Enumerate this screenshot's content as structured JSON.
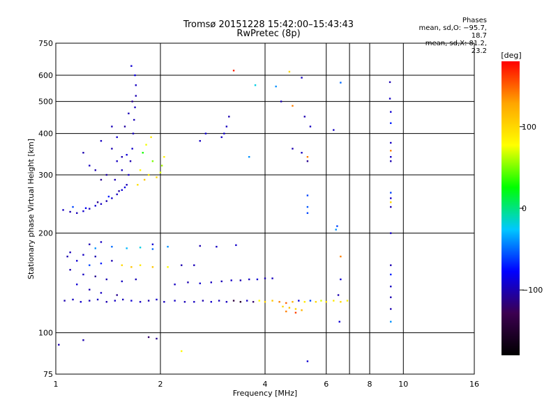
{
  "header": {
    "title_line1": "Tromsø 20151228 15:42:00–15:43:43",
    "title_line2": "RwPretec (8p)"
  },
  "stats": {
    "heading": "Phases",
    "line_o": "mean, sd,O: −95.7, 18.7",
    "line_x": "mean, sd,X:  81.2, 23.2"
  },
  "colorbar": {
    "label": "[deg]",
    "ticks": [
      "100",
      "0",
      "−100"
    ],
    "tick_values": [
      100,
      0,
      -100
    ],
    "range": [
      -180,
      180
    ],
    "colors": [
      "#000000",
      "#3c0050",
      "#0000ff",
      "#00c8ff",
      "#00ff00",
      "#ffff00",
      "#ffa500",
      "#ff0000"
    ]
  },
  "chart_data": {
    "type": "scatter",
    "title": "Tromsø 20151228 15:42:00–15:43:43",
    "subtitle": "RwPretec (8p)",
    "xlabel": "Frequency [MHz]",
    "ylabel": "Stationary phase Virtual Height [km]",
    "xscale": "log",
    "yscale": "log",
    "xlim": [
      1,
      16
    ],
    "ylim": [
      75,
      750
    ],
    "xticks": [
      1,
      2,
      4,
      6,
      8,
      10,
      16
    ],
    "xtick_labels": [
      "1",
      "2",
      "4",
      "6",
      "8",
      "10",
      "16"
    ],
    "yticks": [
      75,
      100,
      200,
      300,
      400,
      500,
      600,
      750
    ],
    "ytick_labels": [
      "75",
      "100",
      "200",
      "300",
      "400",
      "500",
      "600",
      "750"
    ],
    "grid": true,
    "x_gridlines": [
      2,
      4,
      6,
      7,
      8,
      10
    ],
    "y_gridlines": [
      100,
      200,
      300,
      400,
      500,
      600
    ],
    "color_by": "phase [deg]",
    "series": [
      {
        "points": [
          [
            1.05,
            235,
            -95
          ],
          [
            1.1,
            232,
            -100
          ],
          [
            1.15,
            230,
            -98
          ],
          [
            1.2,
            233,
            -92
          ],
          [
            1.25,
            237,
            -97
          ],
          [
            1.3,
            242,
            -90
          ],
          [
            1.35,
            245,
            -95
          ],
          [
            1.4,
            250,
            -100
          ],
          [
            1.45,
            255,
            -92
          ],
          [
            1.5,
            262,
            -96
          ],
          [
            1.55,
            270,
            -90
          ],
          [
            1.6,
            280,
            -98
          ],
          [
            1.62,
            300,
            -95
          ],
          [
            1.64,
            330,
            -100
          ],
          [
            1.66,
            360,
            -92
          ],
          [
            1.67,
            400,
            -96
          ],
          [
            1.68,
            440,
            -98
          ],
          [
            1.69,
            480,
            -95
          ],
          [
            1.7,
            520,
            -100
          ],
          [
            1.7,
            560,
            -95
          ],
          [
            1.69,
            600,
            -85
          ],
          [
            1.65,
            640,
            -90
          ],
          [
            1.12,
            240,
            -60
          ],
          [
            1.22,
            238,
            -80
          ],
          [
            1.32,
            248,
            -110
          ],
          [
            1.42,
            258,
            -70
          ],
          [
            1.52,
            268,
            -105
          ],
          [
            1.58,
            275,
            -85
          ],
          [
            1.48,
            290,
            -100
          ],
          [
            1.55,
            310,
            -95
          ],
          [
            1.6,
            345,
            -88
          ],
          [
            1.45,
            360,
            -100
          ],
          [
            1.5,
            390,
            -92
          ],
          [
            1.58,
            420,
            -105
          ],
          [
            1.62,
            460,
            -98
          ],
          [
            1.66,
            500,
            -110
          ],
          [
            1.75,
            310,
            80
          ],
          [
            1.85,
            300,
            90
          ],
          [
            1.95,
            295,
            100
          ],
          [
            2.0,
            305,
            70
          ],
          [
            2.02,
            320,
            60
          ],
          [
            2.05,
            340,
            85
          ],
          [
            1.9,
            330,
            50
          ],
          [
            1.8,
            290,
            110
          ],
          [
            1.72,
            280,
            95
          ],
          [
            1.78,
            350,
            30
          ],
          [
            1.82,
            370,
            75
          ],
          [
            1.88,
            390,
            90
          ],
          [
            1.2,
            350,
            -100
          ],
          [
            1.35,
            380,
            -95
          ],
          [
            1.45,
            420,
            -98
          ],
          [
            2.7,
            400,
            -90
          ],
          [
            2.6,
            380,
            -95
          ],
          [
            3.1,
            420,
            -96
          ],
          [
            3.15,
            450,
            -100
          ],
          [
            3.05,
            400,
            -92
          ],
          [
            3.0,
            390,
            -94
          ],
          [
            1.35,
            290,
            -110
          ],
          [
            1.4,
            300,
            -105
          ],
          [
            1.3,
            310,
            -100
          ],
          [
            1.25,
            320,
            -95
          ],
          [
            1.5,
            330,
            -95
          ],
          [
            1.55,
            340,
            -100
          ],
          [
            1.06,
            125,
            -100
          ],
          [
            1.12,
            126,
            -96
          ],
          [
            1.18,
            124,
            -92
          ],
          [
            1.25,
            125,
            -98
          ],
          [
            1.32,
            126,
            -95
          ],
          [
            1.4,
            124,
            -100
          ],
          [
            1.48,
            125,
            -94
          ],
          [
            1.56,
            126,
            -97
          ],
          [
            1.65,
            125,
            -90
          ],
          [
            1.75,
            124,
            -95
          ],
          [
            1.85,
            125,
            -100
          ],
          [
            1.95,
            126,
            -93
          ],
          [
            2.05,
            124,
            -96
          ],
          [
            2.2,
            125,
            -94
          ],
          [
            2.35,
            124,
            -98
          ],
          [
            2.5,
            124,
            -95
          ],
          [
            2.65,
            125,
            -100
          ],
          [
            2.8,
            124,
            -92
          ],
          [
            2.95,
            125,
            -97
          ],
          [
            3.1,
            124,
            -96
          ],
          [
            3.25,
            125,
            -140
          ],
          [
            3.4,
            124,
            -150
          ],
          [
            3.55,
            125,
            -94
          ],
          [
            3.7,
            124,
            -120
          ],
          [
            3.85,
            125,
            80
          ],
          [
            4.0,
            124,
            100
          ],
          [
            4.2,
            125,
            110
          ],
          [
            4.4,
            124,
            140
          ],
          [
            4.6,
            123,
            150
          ],
          [
            4.8,
            124,
            120
          ],
          [
            5.0,
            125,
            -90
          ],
          [
            5.2,
            124,
            90
          ],
          [
            5.4,
            125,
            -60
          ],
          [
            5.6,
            124,
            100
          ],
          [
            5.8,
            125,
            70
          ],
          [
            6.0,
            124,
            95
          ],
          [
            6.3,
            125,
            90
          ],
          [
            6.6,
            124,
            100
          ],
          [
            6.9,
            125,
            85
          ],
          [
            4.5,
            120,
            100
          ],
          [
            4.7,
            119,
            110
          ],
          [
            4.9,
            118,
            100
          ],
          [
            5.1,
            117,
            120
          ],
          [
            4.6,
            116,
            140
          ],
          [
            4.9,
            115,
            160
          ],
          [
            1.08,
            170,
            -100
          ],
          [
            1.15,
            165,
            -90
          ],
          [
            1.25,
            160,
            -60
          ],
          [
            1.35,
            162,
            -70
          ],
          [
            1.45,
            165,
            -100
          ],
          [
            1.55,
            160,
            100
          ],
          [
            1.65,
            158,
            110
          ],
          [
            1.75,
            160,
            90
          ],
          [
            1.9,
            158,
            110
          ],
          [
            2.1,
            158,
            80
          ],
          [
            2.3,
            160,
            -100
          ],
          [
            1.3,
            180,
            -40
          ],
          [
            1.45,
            182,
            -50
          ],
          [
            1.6,
            180,
            -30
          ],
          [
            1.75,
            181,
            -20
          ],
          [
            1.9,
            179,
            -50
          ],
          [
            1.1,
            155,
            -100
          ],
          [
            1.2,
            150,
            -95
          ],
          [
            1.3,
            148,
            -110
          ],
          [
            1.4,
            145,
            -100
          ],
          [
            1.55,
            143,
            -95
          ],
          [
            1.7,
            145,
            -98
          ],
          [
            2.2,
            140,
            -95
          ],
          [
            2.4,
            142,
            -100
          ],
          [
            2.6,
            141,
            -92
          ],
          [
            2.8,
            142,
            -96
          ],
          [
            3.0,
            143,
            -98
          ],
          [
            3.2,
            144,
            -94
          ],
          [
            3.4,
            144,
            -100
          ],
          [
            3.6,
            145,
            -95
          ],
          [
            3.8,
            145,
            -90
          ],
          [
            4.0,
            146,
            -100
          ],
          [
            4.2,
            146,
            -96
          ],
          [
            1.15,
            140,
            -90
          ],
          [
            1.25,
            135,
            -100
          ],
          [
            1.35,
            132,
            -95
          ],
          [
            1.5,
            130,
            -110
          ],
          [
            1.25,
            185,
            -100
          ],
          [
            1.35,
            188,
            -95
          ],
          [
            1.9,
            185,
            -90
          ],
          [
            2.1,
            182,
            -40
          ],
          [
            2.6,
            183,
            -100
          ],
          [
            2.9,
            182,
            -95
          ],
          [
            3.3,
            184,
            -92
          ],
          [
            1.1,
            175,
            -98
          ],
          [
            1.2,
            172,
            -95
          ],
          [
            1.3,
            170,
            -100
          ],
          [
            2.5,
            160,
            -98
          ],
          [
            1.02,
            92,
            -100
          ],
          [
            1.2,
            95,
            -100
          ],
          [
            1.85,
            97,
            -120
          ],
          [
            1.95,
            96,
            -110
          ],
          [
            2.3,
            88,
            80
          ],
          [
            5.3,
            82,
            -90
          ],
          [
            3.25,
            620,
            170
          ],
          [
            4.7,
            615,
            100
          ],
          [
            3.75,
            560,
            -20
          ],
          [
            4.3,
            555,
            -40
          ],
          [
            5.1,
            590,
            -95
          ],
          [
            6.6,
            570,
            -50
          ],
          [
            4.45,
            500,
            -100
          ],
          [
            4.8,
            485,
            140
          ],
          [
            5.2,
            450,
            -100
          ],
          [
            5.4,
            420,
            -95
          ],
          [
            4.8,
            360,
            -100
          ],
          [
            5.1,
            350,
            -95
          ],
          [
            5.3,
            340,
            140
          ],
          [
            5.3,
            330,
            -110
          ],
          [
            6.3,
            410,
            -95
          ],
          [
            5.3,
            260,
            -60
          ],
          [
            5.3,
            240,
            -55
          ],
          [
            5.3,
            230,
            -60
          ],
          [
            6.4,
            205,
            -40
          ],
          [
            6.45,
            210,
            -60
          ],
          [
            6.6,
            170,
            140
          ],
          [
            6.6,
            145,
            -90
          ],
          [
            6.5,
            130,
            -100
          ],
          [
            6.55,
            108,
            -90
          ],
          [
            3.6,
            340,
            -40
          ],
          [
            9.15,
            572,
            -100
          ],
          [
            9.15,
            510,
            -95
          ],
          [
            9.2,
            465,
            -90
          ],
          [
            9.2,
            430,
            -70
          ],
          [
            9.2,
            375,
            -95
          ],
          [
            9.2,
            355,
            140
          ],
          [
            9.2,
            340,
            -95
          ],
          [
            9.2,
            330,
            -100
          ],
          [
            9.2,
            265,
            -60
          ],
          [
            9.2,
            255,
            -95
          ],
          [
            9.2,
            248,
            100
          ],
          [
            9.2,
            240,
            -100
          ],
          [
            9.2,
            200,
            -95
          ],
          [
            9.2,
            160,
            -100
          ],
          [
            9.2,
            150,
            -70
          ],
          [
            9.2,
            138,
            -95
          ],
          [
            9.2,
            128,
            -100
          ],
          [
            9.2,
            118,
            -100
          ],
          [
            9.2,
            108,
            -40
          ]
        ]
      }
    ]
  }
}
